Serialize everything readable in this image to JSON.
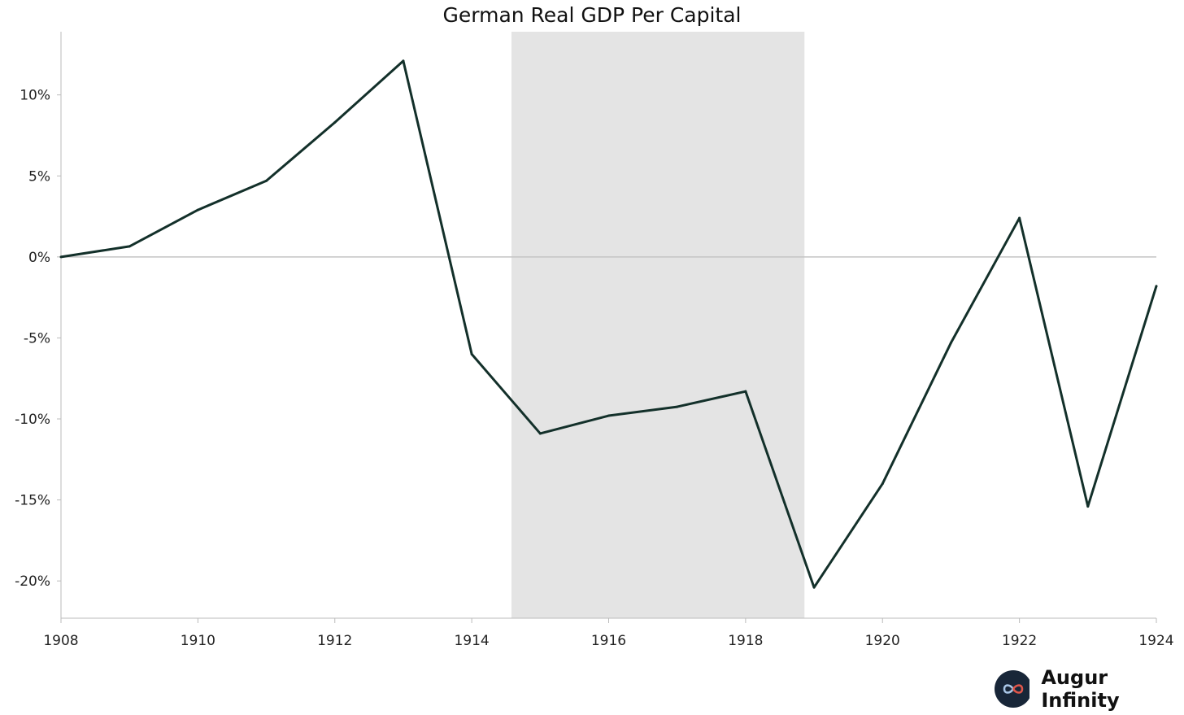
{
  "chart_data": {
    "type": "line",
    "title": "German Real GDP Per Capital",
    "xlabel": "",
    "ylabel": "",
    "x": [
      1908,
      1909,
      1910,
      1911,
      1912,
      1913,
      1914,
      1915,
      1916,
      1917,
      1918,
      1919,
      1920,
      1921,
      1922,
      1923,
      1924
    ],
    "series": [
      {
        "values": [
          0,
          0.65,
          2.9,
          4.7,
          8.3,
          12.1,
          -6.0,
          -10.9,
          -9.8,
          -9.25,
          -8.3,
          -20.4,
          -14.0,
          -5.3,
          2.4,
          -15.4,
          -1.8
        ],
        "color": "#13302a"
      }
    ],
    "xlim": [
      1908,
      1924
    ],
    "ylim": [
      -22.3,
      13.9
    ],
    "xticks": [
      1908,
      1910,
      1912,
      1914,
      1916,
      1918,
      1920,
      1922,
      1924
    ],
    "yticks": [
      10,
      5,
      0,
      -5,
      -10,
      -15,
      -20
    ],
    "ytick_labels": [
      "10%",
      "5%",
      "0%",
      "-5%",
      "-10%",
      "-15%",
      "-20%"
    ],
    "shaded_region": {
      "x_start": 1914.58,
      "x_end": 1918.86,
      "color": "#e4e4e4"
    },
    "zero_line": true,
    "grid": false
  },
  "logo": {
    "text": "Augur Infinity"
  }
}
